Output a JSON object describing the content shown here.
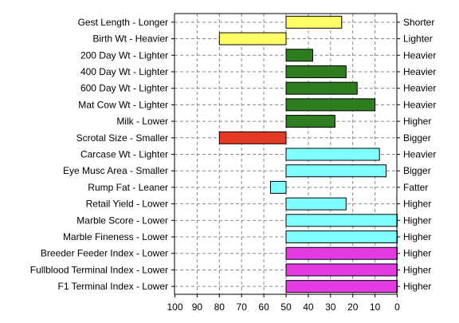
{
  "chart_data": {
    "type": "bar",
    "orientation": "horizontal",
    "x_axis": {
      "direction": "reversed",
      "range": [
        100,
        0
      ],
      "ticks": [
        100,
        90,
        80,
        70,
        60,
        50,
        40,
        30,
        20,
        10,
        0
      ],
      "grid": "dashed"
    },
    "baseline": 50,
    "rows": [
      {
        "left_label": "Gest Length - Longer",
        "right_label": "Shorter",
        "value": 25,
        "color": "#ffff66"
      },
      {
        "left_label": "Birth Wt - Heavier",
        "right_label": "Lighter",
        "value": 80,
        "color": "#ffff66"
      },
      {
        "left_label": "200 Day Wt - Lighter",
        "right_label": "Heavier",
        "value": 38,
        "color": "#2e7d1e"
      },
      {
        "left_label": "400 Day Wt - Lighter",
        "right_label": "Heavier",
        "value": 23,
        "color": "#2e7d1e"
      },
      {
        "left_label": "600 Day Wt - Lighter",
        "right_label": "Heavier",
        "value": 18,
        "color": "#2e7d1e"
      },
      {
        "left_label": "Mat Cow Wt - Lighter",
        "right_label": "Heavier",
        "value": 10,
        "color": "#2e7d1e"
      },
      {
        "left_label": "Milk - Lower",
        "right_label": "Higher",
        "value": 28,
        "color": "#2e7d1e"
      },
      {
        "left_label": "Scrotal Size - Smaller",
        "right_label": "Bigger",
        "value": 80,
        "color": "#e63a24"
      },
      {
        "left_label": "Carcase Wt - Lighter",
        "right_label": "Heavier",
        "value": 8,
        "color": "#7fffff"
      },
      {
        "left_label": "Eye Musc Area - Smaller",
        "right_label": "Bigger",
        "value": 5,
        "color": "#7fffff"
      },
      {
        "left_label": "Rump Fat - Leaner",
        "right_label": "Fatter",
        "value": 57,
        "color": "#7fffff"
      },
      {
        "left_label": "Retail Yield - Lower",
        "right_label": "Higher",
        "value": 23,
        "color": "#7fffff"
      },
      {
        "left_label": "Marble Score - Lower",
        "right_label": "Higher",
        "value": 0,
        "color": "#7fffff"
      },
      {
        "left_label": "Marble Fineness - Lower",
        "right_label": "Higher",
        "value": 0,
        "color": "#7fffff"
      },
      {
        "left_label": "Breeder Feeder Index - Lower",
        "right_label": "Higher",
        "value": 0,
        "color": "#e43ae4"
      },
      {
        "left_label": "Fullblood Terminal Index - Lower",
        "right_label": "Higher",
        "value": 0,
        "color": "#e43ae4"
      },
      {
        "left_label": "F1 Terminal Index - Lower",
        "right_label": "Higher",
        "value": 0,
        "color": "#e43ae4"
      }
    ]
  }
}
